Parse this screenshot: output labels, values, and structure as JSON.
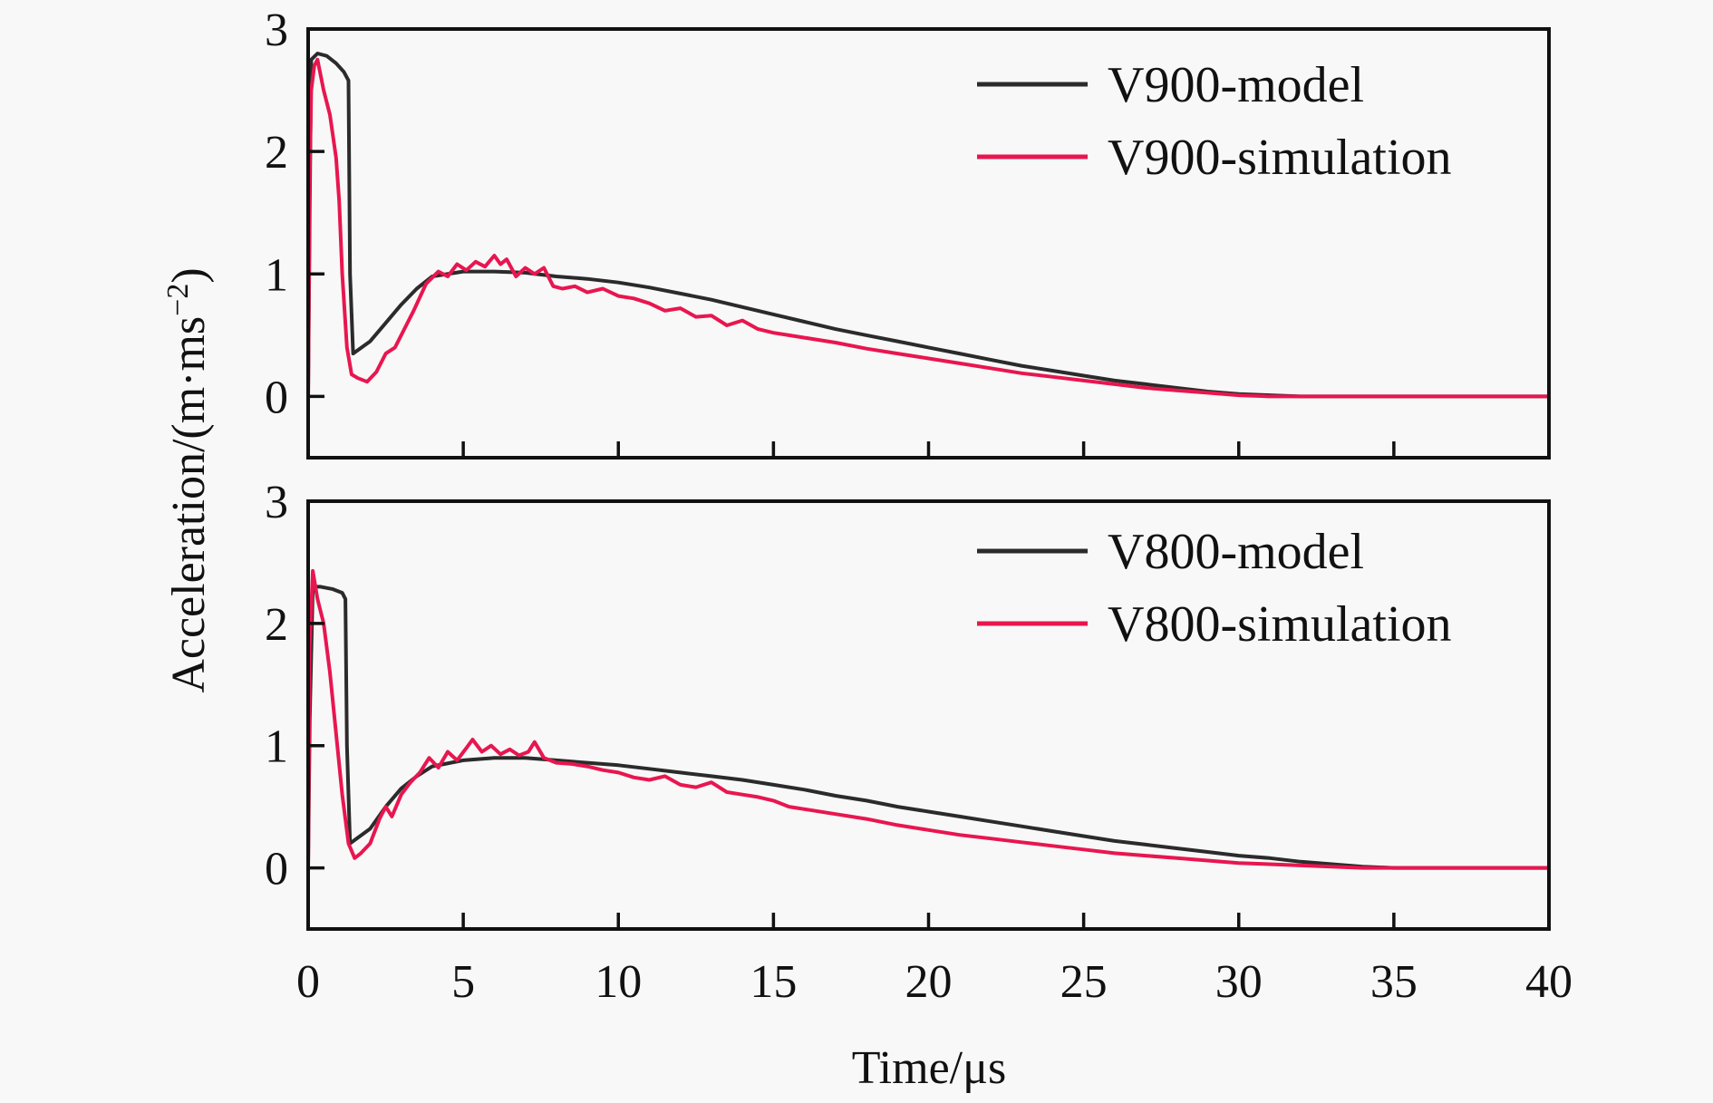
{
  "chart_data": {
    "type": "line",
    "xlabel": "Time/μs",
    "ylabel": "Acceleration/(m·ms⁻²)",
    "ylabel_main": "Acceleration/(m·ms",
    "ylabel_sup": "−2",
    "ylabel_close": ")",
    "xlim": [
      0,
      40
    ],
    "x_ticks": [
      0,
      5,
      10,
      15,
      20,
      25,
      30,
      35,
      40
    ],
    "x_tick_labels": [
      "0",
      "5",
      "10",
      "15",
      "20",
      "25",
      "30",
      "35",
      "40"
    ],
    "grid": false,
    "panels": [
      {
        "id": "top",
        "ylim": [
          -0.5,
          3
        ],
        "y_ticks": [
          0,
          1,
          2,
          3
        ],
        "y_tick_labels": [
          "0",
          "1",
          "2",
          "3"
        ],
        "legend_position": "top-right",
        "series": [
          {
            "name": "V900-model",
            "color": "#2b2b2b",
            "x": [
              0,
              0.05,
              0.1,
              0.3,
              0.6,
              0.9,
              1.15,
              1.3,
              1.35,
              1.45,
              2,
              2.5,
              3,
              3.5,
              4,
              5,
              6,
              7,
              8,
              9,
              10,
              11,
              12,
              13,
              14,
              15,
              16,
              17,
              18,
              19,
              20,
              21,
              22,
              23,
              24,
              25,
              26,
              27,
              28,
              29,
              30,
              31,
              32,
              35,
              40
            ],
            "y": [
              0,
              1.5,
              2.75,
              2.8,
              2.78,
              2.72,
              2.65,
              2.58,
              1.0,
              0.35,
              0.45,
              0.6,
              0.75,
              0.88,
              0.98,
              1.02,
              1.02,
              1.01,
              0.98,
              0.96,
              0.93,
              0.89,
              0.84,
              0.79,
              0.73,
              0.67,
              0.61,
              0.55,
              0.5,
              0.45,
              0.4,
              0.35,
              0.3,
              0.25,
              0.21,
              0.17,
              0.13,
              0.1,
              0.07,
              0.04,
              0.02,
              0.01,
              0.0,
              0.0,
              0.0
            ]
          },
          {
            "name": "V900-simulation",
            "color": "#e8164f",
            "x": [
              0,
              0.05,
              0.1,
              0.2,
              0.3,
              0.5,
              0.7,
              0.9,
              1.0,
              1.1,
              1.25,
              1.4,
              1.6,
              1.9,
              2.2,
              2.5,
              2.8,
              3.1,
              3.4,
              3.8,
              4.2,
              4.5,
              4.8,
              5.1,
              5.4,
              5.7,
              6.0,
              6.2,
              6.4,
              6.7,
              7.0,
              7.3,
              7.6,
              7.9,
              8.2,
              8.6,
              9.0,
              9.5,
              10,
              10.5,
              11,
              11.5,
              12,
              12.5,
              13,
              13.5,
              14,
              14.5,
              15,
              15.5,
              16,
              17,
              18,
              19,
              20,
              21,
              22,
              23,
              24,
              25,
              26,
              27,
              28,
              29,
              30,
              31,
              32,
              35,
              40
            ],
            "y": [
              0,
              1.8,
              2.5,
              2.7,
              2.75,
              2.5,
              2.3,
              1.95,
              1.6,
              1.0,
              0.4,
              0.18,
              0.15,
              0.12,
              0.2,
              0.35,
              0.4,
              0.55,
              0.7,
              0.92,
              1.02,
              0.98,
              1.08,
              1.03,
              1.1,
              1.06,
              1.15,
              1.08,
              1.12,
              0.98,
              1.05,
              1.0,
              1.05,
              0.9,
              0.88,
              0.9,
              0.85,
              0.88,
              0.82,
              0.8,
              0.76,
              0.7,
              0.72,
              0.65,
              0.66,
              0.58,
              0.62,
              0.55,
              0.52,
              0.5,
              0.48,
              0.44,
              0.39,
              0.35,
              0.31,
              0.27,
              0.23,
              0.19,
              0.16,
              0.13,
              0.1,
              0.07,
              0.05,
              0.03,
              0.01,
              0.0,
              0.0,
              0.0,
              0.0
            ]
          }
        ]
      },
      {
        "id": "bottom",
        "ylim": [
          -0.5,
          3
        ],
        "y_ticks": [
          0,
          1,
          2,
          3
        ],
        "y_tick_labels": [
          "0",
          "1",
          "2",
          "3"
        ],
        "legend_position": "top-right",
        "series": [
          {
            "name": "V800-model",
            "color": "#2b2b2b",
            "x": [
              0,
              0.05,
              0.15,
              0.4,
              0.8,
              1.1,
              1.2,
              1.25,
              1.35,
              2,
              2.5,
              3,
              3.5,
              4,
              5,
              6,
              7,
              8,
              9,
              10,
              11,
              12,
              13,
              14,
              15,
              16,
              17,
              18,
              19,
              20,
              21,
              22,
              23,
              24,
              25,
              26,
              27,
              28,
              29,
              30,
              31,
              32,
              33,
              34,
              35,
              40
            ],
            "y": [
              0,
              1.2,
              2.3,
              2.3,
              2.28,
              2.25,
              2.2,
              1.0,
              0.2,
              0.32,
              0.5,
              0.65,
              0.75,
              0.83,
              0.88,
              0.9,
              0.9,
              0.88,
              0.86,
              0.84,
              0.81,
              0.78,
              0.75,
              0.72,
              0.68,
              0.64,
              0.59,
              0.55,
              0.5,
              0.46,
              0.42,
              0.38,
              0.34,
              0.3,
              0.26,
              0.22,
              0.19,
              0.16,
              0.13,
              0.1,
              0.08,
              0.05,
              0.03,
              0.01,
              0.0,
              0.0
            ]
          },
          {
            "name": "V800-simulation",
            "color": "#e8164f",
            "x": [
              0,
              0.05,
              0.15,
              0.3,
              0.5,
              0.7,
              0.9,
              1.1,
              1.3,
              1.5,
              1.7,
              2.0,
              2.3,
              2.5,
              2.7,
              3.0,
              3.3,
              3.6,
              3.9,
              4.2,
              4.5,
              4.8,
              5.1,
              5.3,
              5.6,
              5.9,
              6.2,
              6.5,
              6.8,
              7.1,
              7.3,
              7.6,
              8.0,
              8.5,
              9.0,
              9.5,
              10,
              10.5,
              11,
              11.5,
              12,
              12.5,
              13,
              13.5,
              14,
              14.5,
              15,
              15.5,
              16,
              17,
              18,
              19,
              20,
              21,
              22,
              23,
              24,
              25,
              26,
              27,
              28,
              29,
              30,
              31,
              32,
              33,
              34,
              35,
              40
            ],
            "y": [
              0,
              1.8,
              2.43,
              2.2,
              2.0,
              1.6,
              1.1,
              0.6,
              0.2,
              0.08,
              0.12,
              0.2,
              0.4,
              0.5,
              0.42,
              0.6,
              0.7,
              0.78,
              0.9,
              0.82,
              0.95,
              0.88,
              0.98,
              1.05,
              0.95,
              1.0,
              0.93,
              0.97,
              0.92,
              0.95,
              1.03,
              0.9,
              0.86,
              0.85,
              0.83,
              0.8,
              0.78,
              0.74,
              0.72,
              0.75,
              0.68,
              0.66,
              0.7,
              0.62,
              0.6,
              0.58,
              0.55,
              0.5,
              0.48,
              0.44,
              0.4,
              0.35,
              0.31,
              0.27,
              0.24,
              0.21,
              0.18,
              0.15,
              0.12,
              0.1,
              0.08,
              0.06,
              0.04,
              0.03,
              0.02,
              0.01,
              0.0,
              0.0,
              0.0
            ]
          }
        ]
      }
    ]
  }
}
